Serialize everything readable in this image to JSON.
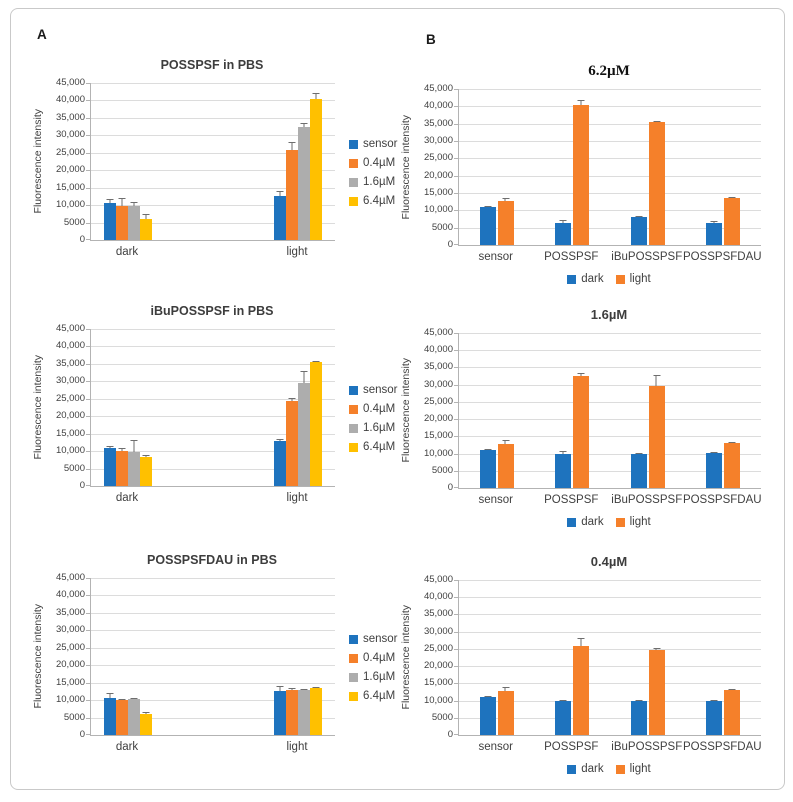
{
  "figure": {
    "panel_a_label": "A",
    "panel_b_label": "B"
  },
  "axis": {
    "ylabel": "Fluorescence intensity",
    "ymax": 45000,
    "ytick_labels": [
      "45,000",
      "40,000",
      "35,000",
      "30,000",
      "25,000",
      "20,000",
      "15,000",
      "10,000",
      "5000",
      "0"
    ],
    "ytick_values": [
      45000,
      40000,
      35000,
      30000,
      25000,
      20000,
      15000,
      10000,
      5000,
      0
    ],
    "grid": true
  },
  "colors": {
    "blue": "#1E73BE",
    "orange": "#F5802A",
    "gray": "#ADADAD",
    "yellow": "#FFC000"
  },
  "chart_data": [
    {
      "id": "a1",
      "panel": "A",
      "type": "bar",
      "title": "POSSPSF in PBS",
      "categories": [
        "dark",
        "light"
      ],
      "series": [
        {
          "name": "sensor",
          "color": "blue",
          "values": [
            10700,
            12700
          ],
          "errors": [
            1200,
            1300
          ]
        },
        {
          "name": "0.4µM",
          "color": "orange",
          "values": [
            9700,
            25800
          ],
          "errors": [
            2400,
            2300
          ]
        },
        {
          "name": "1.6µM",
          "color": "gray",
          "values": [
            9800,
            32400
          ],
          "errors": [
            1200,
            1100
          ]
        },
        {
          "name": "6.4µM",
          "color": "yellow",
          "values": [
            6000,
            40500
          ],
          "errors": [
            1500,
            1800
          ]
        }
      ],
      "legend_position": "right",
      "ylabel": "Fluorescence intensity"
    },
    {
      "id": "a2",
      "panel": "A",
      "type": "bar",
      "title": "iBuPOSSPSF in PBS",
      "categories": [
        "dark",
        "light"
      ],
      "series": [
        {
          "name": "sensor",
          "color": "blue",
          "values": [
            10800,
            12800
          ],
          "errors": [
            700,
            500
          ]
        },
        {
          "name": "0.4µM",
          "color": "orange",
          "values": [
            9900,
            24500
          ],
          "errors": [
            800,
            1000
          ]
        },
        {
          "name": "1.6µM",
          "color": "gray",
          "values": [
            9700,
            29500
          ],
          "errors": [
            3300,
            3300
          ]
        },
        {
          "name": "6.4µM",
          "color": "yellow",
          "values": [
            8200,
            35600
          ],
          "errors": [
            500,
            300
          ]
        }
      ],
      "legend_position": "right",
      "ylabel": "Fluorescence intensity"
    },
    {
      "id": "a3",
      "panel": "A",
      "type": "bar",
      "title": "POSSPSFDAU in PBS",
      "categories": [
        "dark",
        "light"
      ],
      "series": [
        {
          "name": "sensor",
          "color": "blue",
          "values": [
            10700,
            12700
          ],
          "errors": [
            1300,
            1400
          ]
        },
        {
          "name": "0.4µM",
          "color": "orange",
          "values": [
            9900,
            13000
          ],
          "errors": [
            400,
            700
          ]
        },
        {
          "name": "1.6µM",
          "color": "gray",
          "values": [
            10200,
            12800
          ],
          "errors": [
            400,
            400
          ]
        },
        {
          "name": "6.4µM",
          "color": "yellow",
          "values": [
            5900,
            13500
          ],
          "errors": [
            500,
            300
          ]
        }
      ],
      "legend_position": "right",
      "ylabel": "Fluorescence intensity"
    },
    {
      "id": "b1",
      "panel": "B",
      "type": "bar",
      "title": "6.2µM",
      "title_style": "serif",
      "categories": [
        "sensor",
        "POSSPSF",
        "iBuPOSSPSF",
        "POSSPSFDAU"
      ],
      "series": [
        {
          "name": "dark",
          "color": "blue",
          "values": [
            10900,
            6300,
            8200,
            6300
          ],
          "errors": [
            400,
            1000,
            300,
            700
          ]
        },
        {
          "name": "light",
          "color": "orange",
          "values": [
            12800,
            40500,
            35600,
            13600
          ],
          "errors": [
            1000,
            1500,
            300,
            300
          ]
        }
      ],
      "legend_position": "bottom",
      "ylabel": "Fluorescence intensity"
    },
    {
      "id": "b2",
      "panel": "B",
      "type": "bar",
      "title": "1.6µM",
      "title_style": "sans",
      "categories": [
        "sensor",
        "POSSPSF",
        "iBuPOSSPSF",
        "POSSPSFDAU"
      ],
      "series": [
        {
          "name": "dark",
          "color": "blue",
          "values": [
            10900,
            10000,
            9800,
            10300
          ],
          "errors": [
            400,
            800,
            400,
            300
          ]
        },
        {
          "name": "light",
          "color": "orange",
          "values": [
            12700,
            32400,
            29600,
            13000
          ],
          "errors": [
            1300,
            1000,
            3200,
            300
          ]
        }
      ],
      "legend_position": "bottom",
      "ylabel": "Fluorescence intensity"
    },
    {
      "id": "b3",
      "panel": "B",
      "type": "bar",
      "title": "0.4µM",
      "title_style": "sans",
      "categories": [
        "sensor",
        "POSSPSF",
        "iBuPOSSPSF",
        "POSSPSFDAU"
      ],
      "series": [
        {
          "name": "dark",
          "color": "blue",
          "values": [
            11000,
            10000,
            10000,
            10000
          ],
          "errors": [
            300,
            300,
            300,
            300
          ]
        },
        {
          "name": "light",
          "color": "orange",
          "values": [
            12800,
            25700,
            24600,
            13100
          ],
          "errors": [
            1200,
            2300,
            700,
            400
          ]
        }
      ],
      "legend_position": "bottom",
      "ylabel": "Fluorescence intensity"
    }
  ]
}
